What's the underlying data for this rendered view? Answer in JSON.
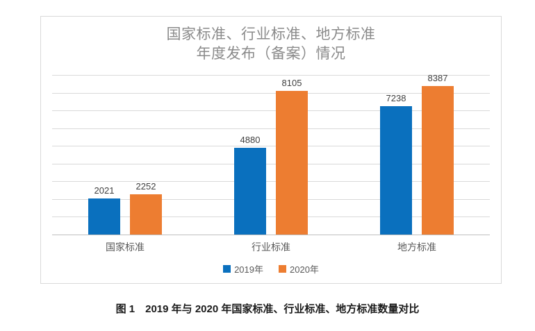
{
  "chart_data": {
    "type": "bar",
    "title_lines": [
      "国家标准、行业标准、地方标准",
      "年度发布（备案）情况"
    ],
    "categories": [
      "国家标准",
      "行业标准",
      "地方标准"
    ],
    "series": [
      {
        "name": "2019年",
        "values": [
          2021,
          4880,
          7238
        ],
        "color": "#0a70be"
      },
      {
        "name": "2020年",
        "values": [
          2252,
          8105,
          8387
        ],
        "color": "#ed7d31"
      }
    ],
    "ylim": [
      0,
      9000
    ],
    "grid_step": 1000,
    "grid": true,
    "y_axis_labels_visible": false,
    "data_labels_visible": true,
    "legend_position": "bottom"
  },
  "caption": "图 1　2019 年与 2020 年国家标准、行业标准、地方标准数量对比",
  "colors": {
    "gridline": "#d9d9d9",
    "axis_line": "#bfbfbf",
    "chart_border": "#d9d9d9",
    "title_text": "#8a8a8a",
    "value_label_text": "#3f3f3f",
    "category_text": "#595959",
    "legend_text": "#595959",
    "caption_text": "#1a1a1a"
  }
}
